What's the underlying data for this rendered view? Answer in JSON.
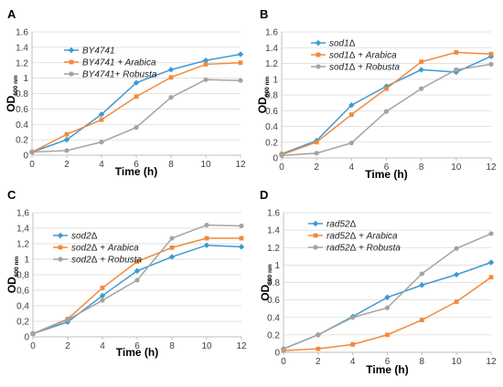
{
  "colors": {
    "series_1": "#3d9ad1",
    "series_2": "#f28a3b",
    "series_3": "#a3a3a3",
    "axis": "#bfbfbf",
    "gridline": "#d9d9d9"
  },
  "chart_data": [
    {
      "panel": "A",
      "type": "line",
      "x": [
        0,
        2,
        4,
        6,
        8,
        10,
        12
      ],
      "xlabel": "Time (h)",
      "ylabel": "OD",
      "ylabel_subscript": "600 nm",
      "xlim": [
        0,
        12
      ],
      "ylim": [
        0,
        1.6
      ],
      "xticks": [
        "0",
        "2",
        "4",
        "6",
        "8",
        "10",
        "12"
      ],
      "yticks": [
        "0",
        "0.2",
        "0.4",
        "0.6",
        "0.8",
        "1",
        "1.2",
        "1.4",
        "1.6"
      ],
      "grid": "horizontal",
      "legend_position": "upper-left",
      "series": [
        {
          "name": "BY4741",
          "values": [
            0.04,
            0.2,
            0.53,
            0.94,
            1.11,
            1.23,
            1.31
          ]
        },
        {
          "name": "BY4741 + Arabica",
          "values": [
            0.04,
            0.27,
            0.46,
            0.76,
            1.01,
            1.18,
            1.2
          ]
        },
        {
          "name": "BY4741+ Robusta",
          "values": [
            0.04,
            0.06,
            0.17,
            0.36,
            0.75,
            0.98,
            0.97
          ]
        }
      ]
    },
    {
      "panel": "B",
      "type": "line",
      "x": [
        0,
        2,
        4,
        6,
        8,
        10,
        12
      ],
      "xlabel": "Time (h)",
      "ylabel": "OD",
      "ylabel_subscript": "600 nm",
      "xlim": [
        0,
        12
      ],
      "ylim": [
        0,
        1.6
      ],
      "xticks": [
        "0",
        "2",
        "4",
        "6",
        "8",
        "10",
        "12"
      ],
      "yticks": [
        "0",
        "0.2",
        "0.4",
        "0.6",
        "0.8",
        "1",
        "1.2",
        "1.4",
        "1.6"
      ],
      "grid": "horizontal",
      "legend_position": "upper-left",
      "series": [
        {
          "name": "sod1Δ",
          "values": [
            0.05,
            0.22,
            0.67,
            0.91,
            1.12,
            1.09,
            1.29
          ]
        },
        {
          "name": "sod1Δ + Arabica",
          "values": [
            0.04,
            0.2,
            0.55,
            0.88,
            1.22,
            1.34,
            1.32
          ]
        },
        {
          "name": "sod1Δ + Robusta",
          "values": [
            0.03,
            0.06,
            0.19,
            0.59,
            0.88,
            1.12,
            1.19
          ]
        }
      ]
    },
    {
      "panel": "C",
      "type": "line",
      "x": [
        0,
        2,
        4,
        6,
        8,
        10,
        12
      ],
      "xlabel": "Time (h)",
      "ylabel": "OD",
      "ylabel_subscript": "600 nm",
      "xlim": [
        0,
        12
      ],
      "ylim": [
        0,
        1.6
      ],
      "xticks": [
        "0",
        "2",
        "4",
        "6",
        "8",
        "10",
        "12"
      ],
      "yticks": [
        "0",
        "0,2",
        "0,4",
        "0,6",
        "0,8",
        "1",
        "1,2",
        "1,4",
        "1,6"
      ],
      "grid": "horizontal",
      "legend_position": "upper-left",
      "series": [
        {
          "name": "sod2Δ",
          "values": [
            0.04,
            0.19,
            0.53,
            0.85,
            1.03,
            1.18,
            1.16
          ]
        },
        {
          "name": "sod2Δ + Arabica",
          "values": [
            0.04,
            0.23,
            0.63,
            0.97,
            1.15,
            1.27,
            1.27
          ]
        },
        {
          "name": "sod2Δ + Robusta",
          "values": [
            0.04,
            0.22,
            0.47,
            0.73,
            1.27,
            1.44,
            1.43
          ]
        }
      ]
    },
    {
      "panel": "D",
      "type": "line",
      "x": [
        0,
        2,
        4,
        6,
        8,
        10,
        12
      ],
      "xlabel": "Time (h)",
      "ylabel": "OD",
      "ylabel_subscript": "600 nm",
      "xlim": [
        0,
        12
      ],
      "ylim": [
        0,
        1.6
      ],
      "xticks": [
        "0",
        "2",
        "4",
        "6",
        "8",
        "10",
        "12"
      ],
      "yticks": [
        "0",
        "0.2",
        "0.4",
        "0.6",
        "0.8",
        "1",
        "1.2",
        "1.4",
        "1.6"
      ],
      "grid": "horizontal",
      "legend_position": "upper-left",
      "series": [
        {
          "name": "rad52Δ",
          "values": [
            0.04,
            0.2,
            0.41,
            0.63,
            0.77,
            0.89,
            1.03
          ]
        },
        {
          "name": "rad52Δ + Arabica",
          "values": [
            0.02,
            0.04,
            0.09,
            0.2,
            0.37,
            0.58,
            0.86
          ]
        },
        {
          "name": "rad52Δ + Robusta",
          "values": [
            0.04,
            0.2,
            0.4,
            0.51,
            0.9,
            1.19,
            1.36
          ]
        }
      ]
    }
  ]
}
